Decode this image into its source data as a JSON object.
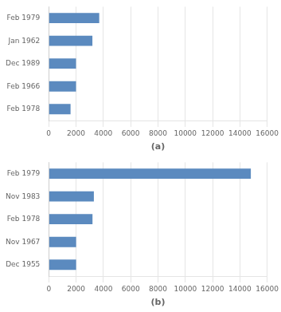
{
  "chart_data": [
    {
      "type": "bar",
      "orientation": "horizontal",
      "categories": [
        "Feb 1979",
        "Jan 1962",
        "Dec 1989",
        "Feb 1966",
        "Feb 1978"
      ],
      "values": [
        3700,
        3200,
        2000,
        2000,
        1600
      ],
      "color": "#5b8abf",
      "xlabel": "(a)",
      "xlim": [
        0,
        16000
      ],
      "xticks": [
        0,
        2000,
        4000,
        6000,
        8000,
        10000,
        12000,
        14000,
        16000
      ],
      "grid": true
    },
    {
      "type": "bar",
      "orientation": "horizontal",
      "categories": [
        "Feb 1979",
        "Nov 1983",
        "Feb 1978",
        "Nov 1967",
        "Dec 1955"
      ],
      "values": [
        14800,
        3300,
        3200,
        2000,
        2000
      ],
      "color": "#5b8abf",
      "xlabel": "(b)",
      "xlim": [
        0,
        16000
      ],
      "xticks": [
        0,
        2000,
        4000,
        6000,
        8000,
        10000,
        12000,
        14000,
        16000
      ],
      "grid": true
    }
  ]
}
